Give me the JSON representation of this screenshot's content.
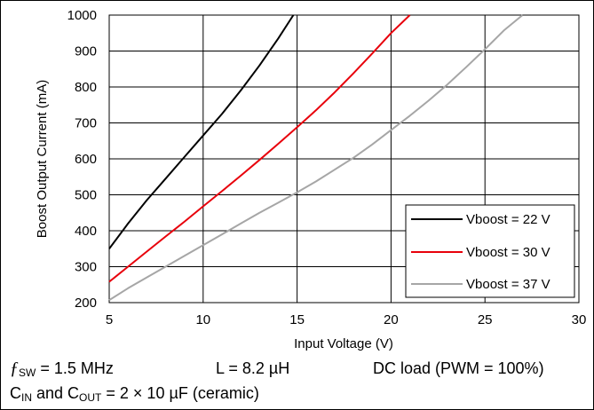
{
  "chart_data": {
    "type": "line",
    "xlabel": "Input Voltage (V)",
    "ylabel": "Boost Output Current (mA)",
    "xlim": [
      5,
      30
    ],
    "ylim": [
      200,
      1000
    ],
    "xticks": [
      5,
      10,
      15,
      20,
      25,
      30
    ],
    "yticks": [
      200,
      300,
      400,
      500,
      600,
      700,
      800,
      900,
      1000
    ],
    "grid": true,
    "legend_position": "bottom-right",
    "series": [
      {
        "name": "Vboost = 22 V",
        "color": "#000000",
        "x": [
          5,
          6,
          7,
          8,
          9,
          10,
          11,
          12,
          13,
          14,
          14.8
        ],
        "y": [
          350,
          420,
          485,
          545,
          605,
          665,
          725,
          790,
          860,
          935,
          1000
        ]
      },
      {
        "name": "Vboost = 30 V",
        "color": "#e8000b",
        "x": [
          5,
          6,
          7,
          8,
          9,
          10,
          11,
          12,
          13,
          14,
          15,
          16,
          17,
          18,
          19,
          20,
          21
        ],
        "y": [
          258,
          300,
          342,
          384,
          425,
          468,
          510,
          553,
          597,
          642,
          688,
          735,
          785,
          838,
          893,
          950,
          1000
        ]
      },
      {
        "name": "Vboost = 37 V",
        "color": "#a6a6a6",
        "x": [
          5,
          6,
          7,
          8,
          9,
          10,
          11,
          12,
          13,
          14,
          15,
          16,
          17,
          18,
          19,
          20,
          21,
          22,
          23,
          24,
          25,
          26,
          27
        ],
        "y": [
          207,
          240,
          270,
          300,
          330,
          360,
          390,
          420,
          450,
          478,
          507,
          537,
          570,
          603,
          640,
          680,
          720,
          762,
          807,
          855,
          905,
          957,
          1000
        ]
      }
    ]
  },
  "conditions": {
    "fsw_sym": "ƒ",
    "fsw_sub": "SW",
    "fsw_value": " = 1.5 MHz",
    "inductance": "L = 8.2 µH",
    "load": "DC load (PWM = 100%)",
    "cap_c1": "C",
    "cap_sub1": "IN",
    "cap_mid": " and C",
    "cap_sub2": "OUT",
    "cap_rest": " = 2 × 10 µF (ceramic)"
  }
}
